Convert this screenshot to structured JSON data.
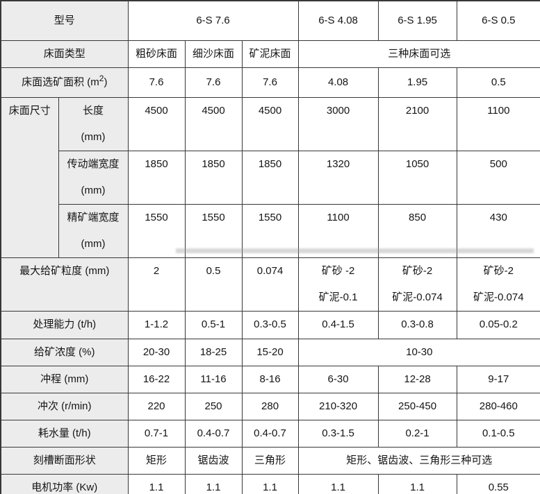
{
  "colors": {
    "header_cell_bg": "#ececec",
    "border": "#373737",
    "text": "#141414",
    "page_bg": "#ffffff"
  },
  "table": {
    "description": "6-S shaking table specification table",
    "rows": [
      {
        "cells": [
          {
            "text": "型号",
            "colspan": 2,
            "header": true
          },
          {
            "text": "6-S 7.6",
            "colspan": 3
          },
          {
            "text": "6-S 4.08"
          },
          {
            "text": "6-S 1.95"
          },
          {
            "text": "6-S 0.5"
          }
        ]
      },
      {
        "cells": [
          {
            "text": "床面类型",
            "colspan": 2,
            "header": true
          },
          {
            "text": "粗砂床面"
          },
          {
            "text": "细沙床面"
          },
          {
            "text": "矿泥床面"
          },
          {
            "text": "三种床面可选",
            "colspan": 3
          }
        ]
      },
      {
        "cells": [
          {
            "text": "床面选矿面积 (m²)",
            "colspan": 2,
            "header": true
          },
          {
            "text": "7.6"
          },
          {
            "text": "7.6"
          },
          {
            "text": "7.6"
          },
          {
            "text": "4.08"
          },
          {
            "text": "1.95"
          },
          {
            "text": "0.5"
          }
        ]
      },
      {
        "cells": [
          {
            "text": "床面尺寸",
            "rowspan": 3,
            "header": true
          },
          {
            "text": "长度\n(mm)",
            "header": true
          },
          {
            "text": "4500"
          },
          {
            "text": "4500"
          },
          {
            "text": "4500"
          },
          {
            "text": "3000"
          },
          {
            "text": "2100"
          },
          {
            "text": "1100"
          }
        ]
      },
      {
        "cells": [
          {
            "text": "传动端宽度\n(mm)",
            "header": true
          },
          {
            "text": "1850"
          },
          {
            "text": "1850"
          },
          {
            "text": "1850"
          },
          {
            "text": "1320"
          },
          {
            "text": "1050"
          },
          {
            "text": "500"
          }
        ]
      },
      {
        "cells": [
          {
            "text": "精矿端宽度\n(mm)",
            "header": true
          },
          {
            "text": "1550"
          },
          {
            "text": "1550"
          },
          {
            "text": "1550"
          },
          {
            "text": "1100"
          },
          {
            "text": "850"
          },
          {
            "text": "430"
          }
        ]
      },
      {
        "cells": [
          {
            "text": "最大给矿粒度 (mm)",
            "colspan": 2,
            "header": true
          },
          {
            "text": "2"
          },
          {
            "text": "0.5"
          },
          {
            "text": "0.074"
          },
          {
            "text": "矿砂 -2\n矿泥-0.1"
          },
          {
            "text": "矿砂-2\n矿泥-0.074"
          },
          {
            "text": "矿砂-2\n矿泥-0.074"
          }
        ]
      },
      {
        "cells": [
          {
            "text": "处理能力 (t/h)",
            "colspan": 2,
            "header": true
          },
          {
            "text": "1-1.2"
          },
          {
            "text": "0.5-1"
          },
          {
            "text": "0.3-0.5"
          },
          {
            "text": "0.4-1.5"
          },
          {
            "text": "0.3-0.8"
          },
          {
            "text": "0.05-0.2"
          }
        ]
      },
      {
        "cells": [
          {
            "text": "给矿浓度 (%)",
            "colspan": 2,
            "header": true
          },
          {
            "text": "20-30"
          },
          {
            "text": "18-25"
          },
          {
            "text": "15-20"
          },
          {
            "text": "10-30",
            "colspan": 3
          }
        ]
      },
      {
        "cells": [
          {
            "text": "冲程 (mm)",
            "colspan": 2,
            "header": true
          },
          {
            "text": "16-22"
          },
          {
            "text": "11-16"
          },
          {
            "text": "8-16"
          },
          {
            "text": "6-30"
          },
          {
            "text": "12-28"
          },
          {
            "text": "9-17"
          }
        ]
      },
      {
        "cells": [
          {
            "text": "冲次 (r/min)",
            "colspan": 2,
            "header": true
          },
          {
            "text": "220"
          },
          {
            "text": "250"
          },
          {
            "text": "280"
          },
          {
            "text": "210-320"
          },
          {
            "text": "250-450"
          },
          {
            "text": "280-460"
          }
        ]
      },
      {
        "cells": [
          {
            "text": "耗水量 (t/h)",
            "colspan": 2,
            "header": true
          },
          {
            "text": "0.7-1"
          },
          {
            "text": "0.4-0.7"
          },
          {
            "text": "0.4-0.7"
          },
          {
            "text": "0.3-1.5"
          },
          {
            "text": "0.2-1"
          },
          {
            "text": "0.1-0.5"
          }
        ]
      },
      {
        "cells": [
          {
            "text": "刻槽断面形状",
            "colspan": 2,
            "header": true
          },
          {
            "text": "矩形"
          },
          {
            "text": "锯齿波"
          },
          {
            "text": "三角形"
          },
          {
            "text": "矩形、锯齿波、三角形三种可选",
            "colspan": 3
          }
        ]
      },
      {
        "cells": [
          {
            "text": "电机功率 (Kw)",
            "colspan": 2,
            "header": true
          },
          {
            "text": "1.1"
          },
          {
            "text": "1.1"
          },
          {
            "text": "1.1"
          },
          {
            "text": "1.1"
          },
          {
            "text": "1.1"
          },
          {
            "text": "0.55"
          }
        ]
      }
    ]
  }
}
